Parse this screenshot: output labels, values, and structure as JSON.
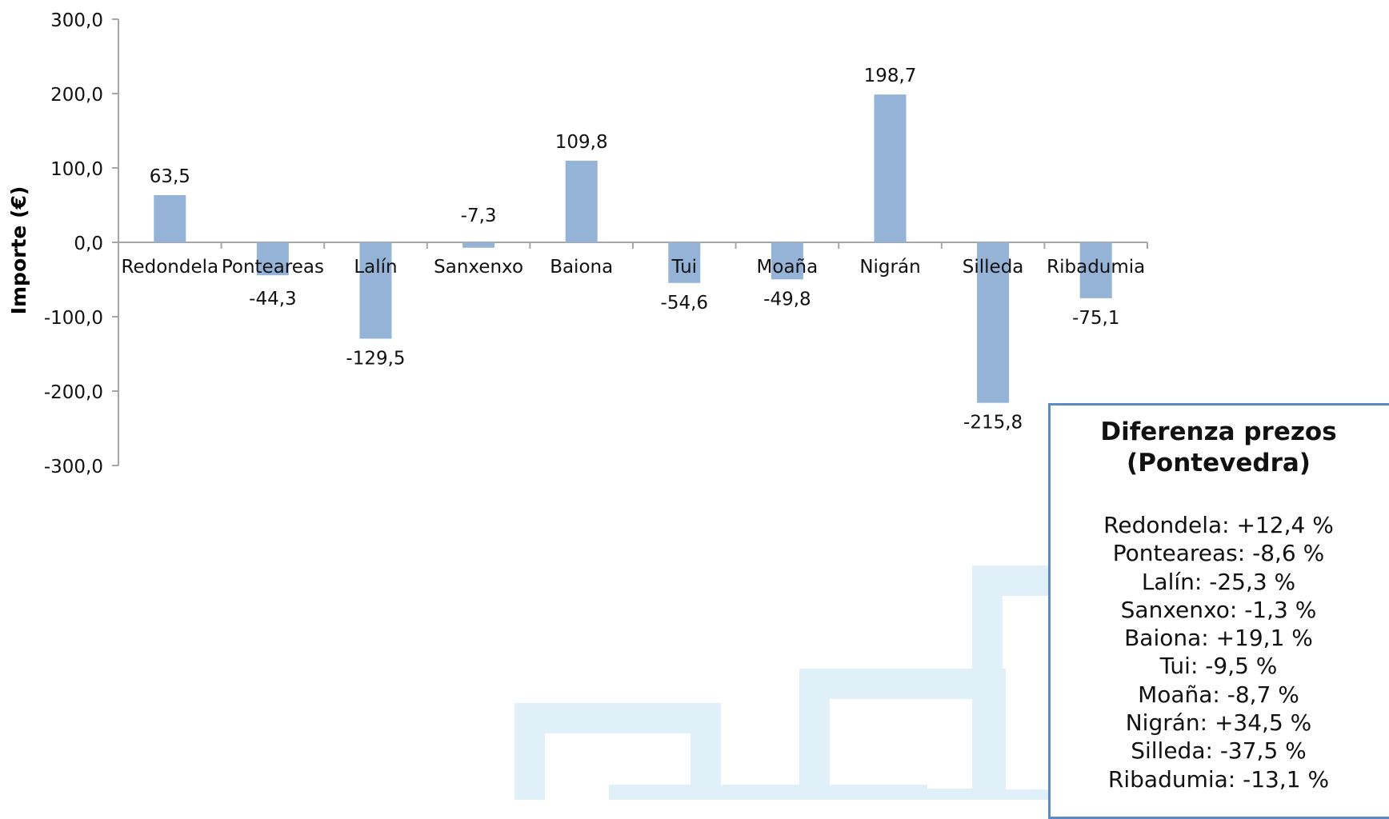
{
  "chart_data": {
    "type": "bar",
    "ylabel": "Importe (€)",
    "ylim": [
      -300,
      300
    ],
    "yticks": [
      300,
      200,
      100,
      0,
      -100,
      -200,
      -300
    ],
    "ytick_labels": [
      "300,0",
      "200,0",
      "100,0",
      "0,0",
      "-100,0",
      "-200,0",
      "-300,0"
    ],
    "categories": [
      "Redondela",
      "Ponteareas",
      "Lalín",
      "Sanxenxo",
      "Baiona",
      "Tui",
      "Moaña",
      "Nigrán",
      "Silleda",
      "Ribadumia"
    ],
    "values": [
      63.5,
      -44.3,
      -129.5,
      -7.3,
      109.8,
      -54.6,
      -49.8,
      198.7,
      -215.8,
      -75.1
    ],
    "value_labels": [
      "63,5",
      "-44,3",
      "-129,5",
      "-7,3",
      "109,8",
      "-54,6",
      "-49,8",
      "198,7",
      "-215,8",
      "-75,1"
    ],
    "bar_color": "#95b3d7",
    "axis_color": "#a6a6a6"
  },
  "info_box": {
    "title_line1": "Diferenza prezos",
    "title_line2": "(Pontevedra)",
    "lines": [
      "Redondela: +12,4 %",
      "Ponteareas: -8,6 %",
      "Lalín: -25,3 %",
      "Sanxenxo: -1,3 %",
      "Baiona: +19,1 %",
      "Tui: -9,5 %",
      "Moaña: -8,7 %",
      "Nigrán: +34,5 %",
      "Silleda: -37,5 %",
      "Ribadumia: -13,1 %"
    ],
    "border_color": "#5b8ac6"
  },
  "watermark": {
    "color": "#dff0f8"
  }
}
